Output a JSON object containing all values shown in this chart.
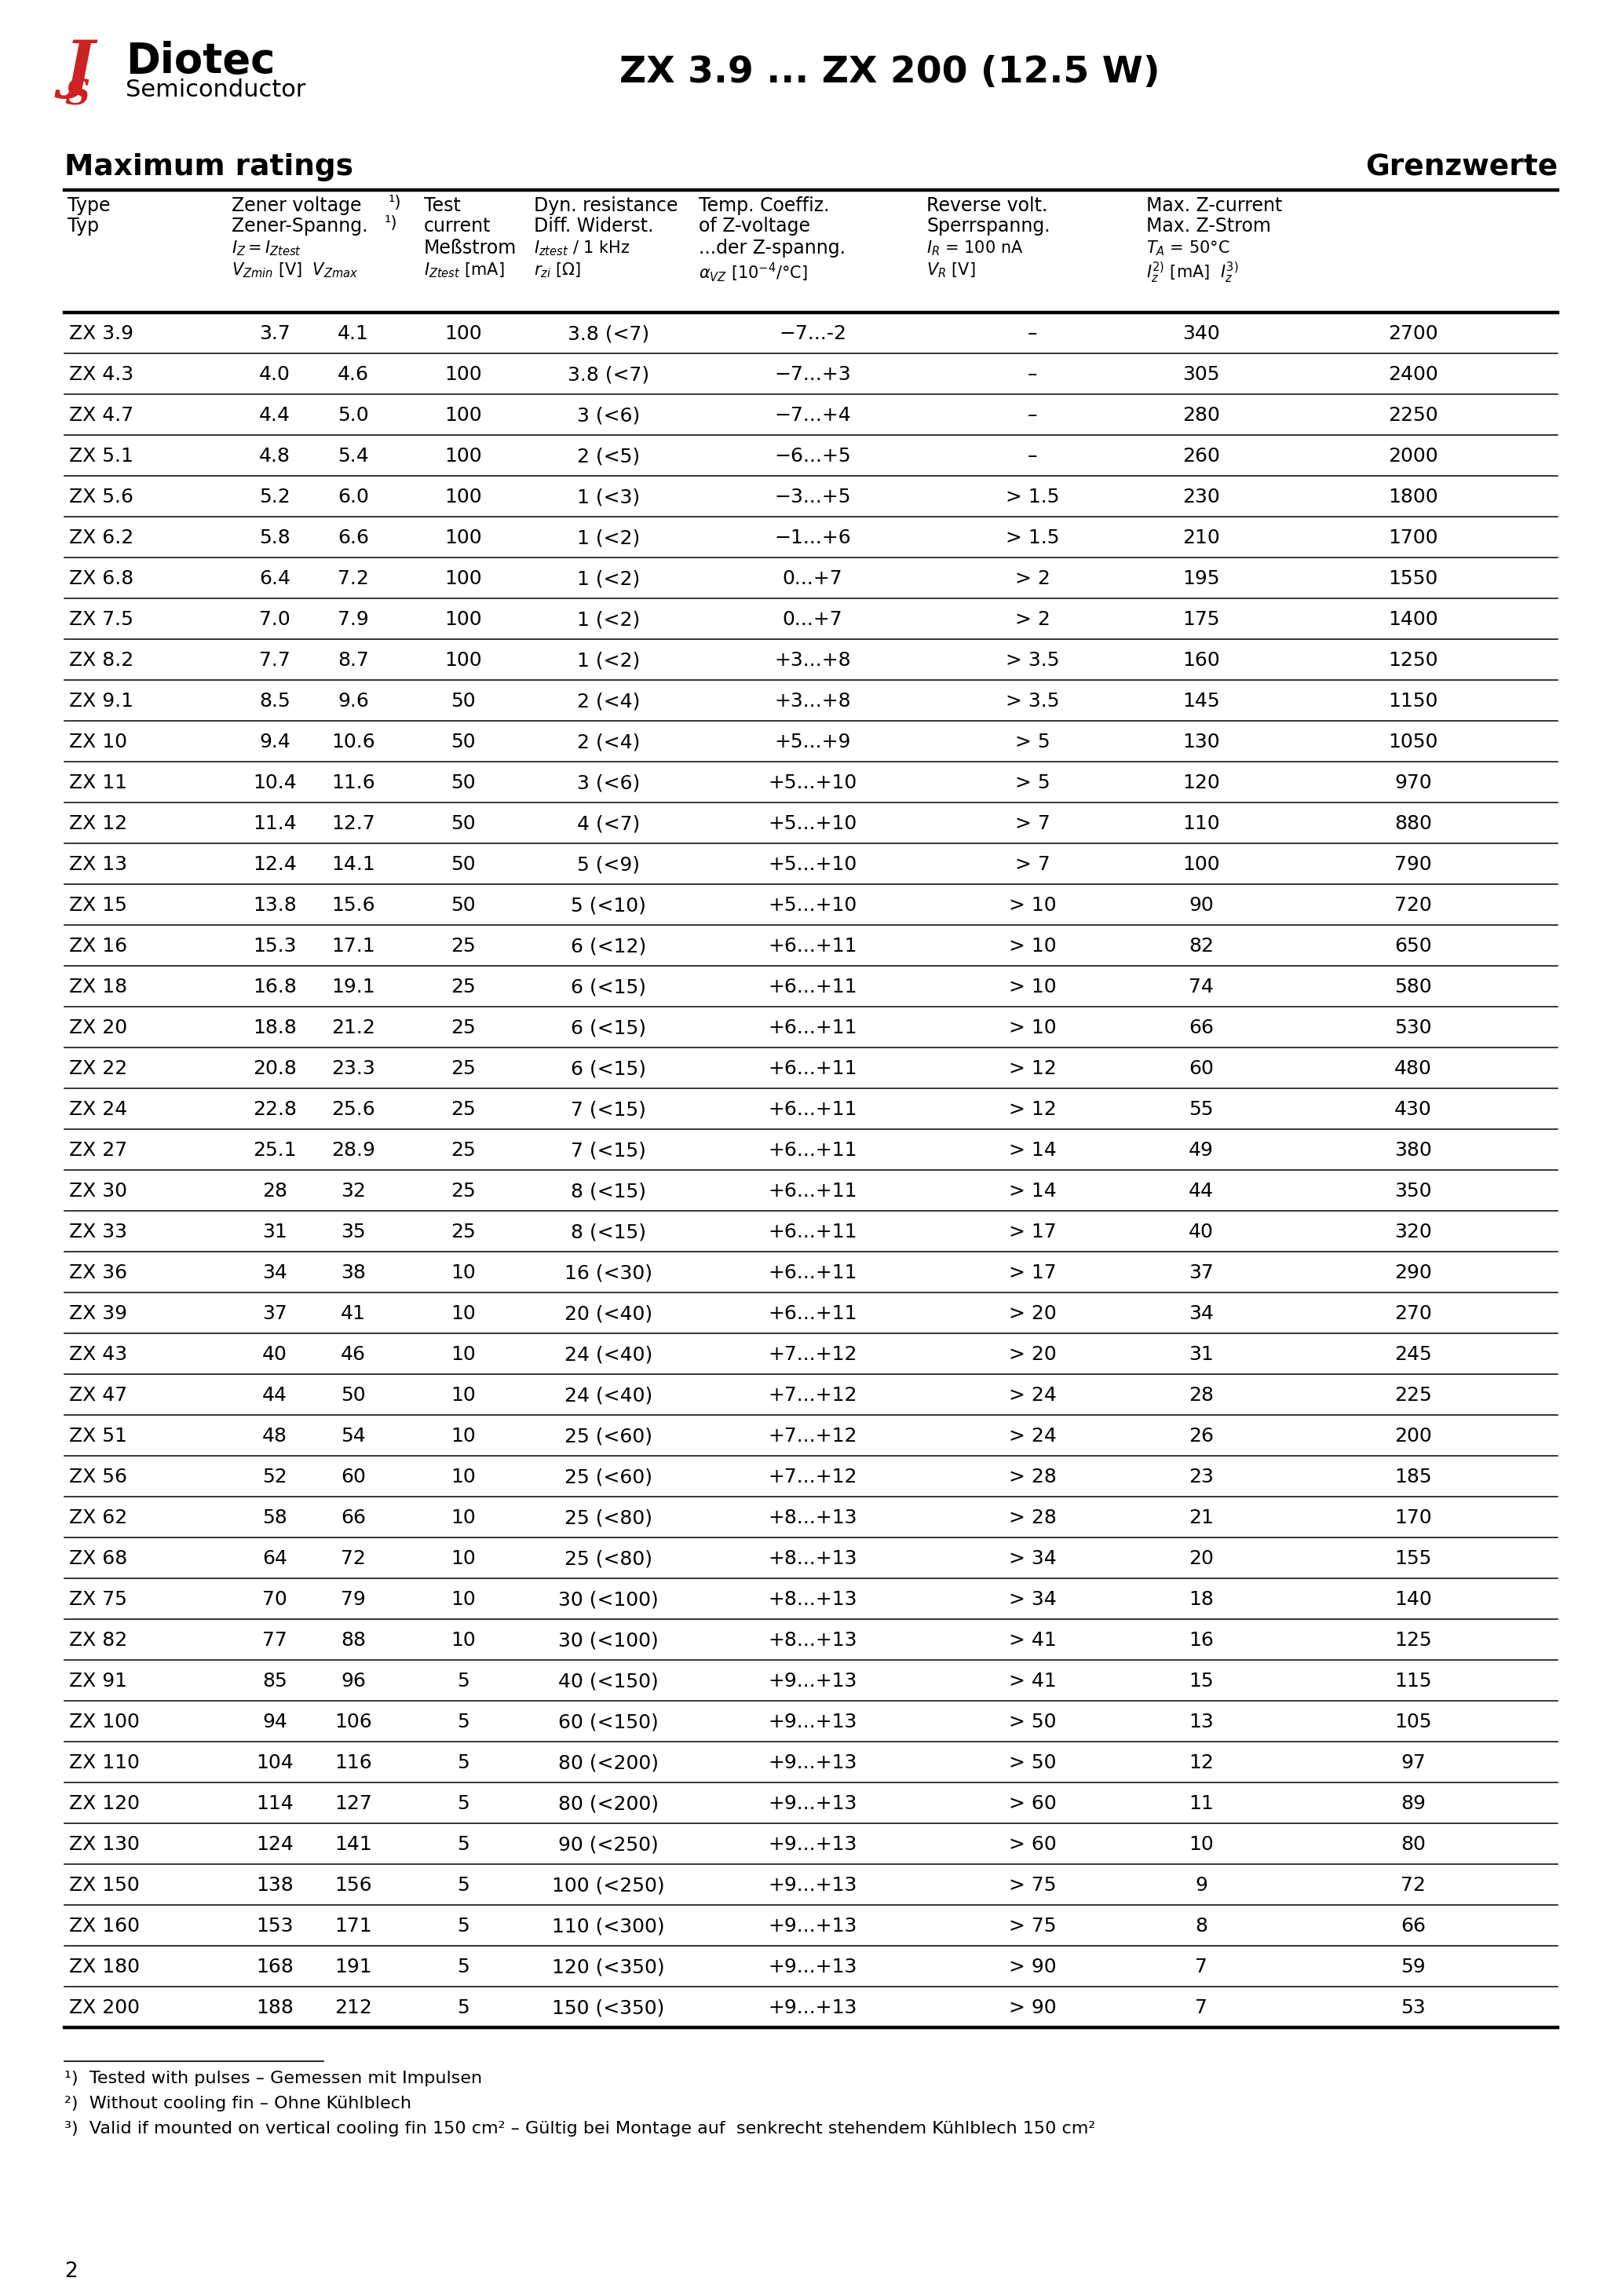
{
  "title": "ZX 3.9 ... ZX 200 (12.5 W)",
  "logo_text_top": "Diotec",
  "logo_text_bottom": "Semiconductor",
  "section_left": "Maximum ratings",
  "section_right": "Grenzwerte",
  "rows": [
    [
      "ZX 3.9",
      "3.7",
      "4.1",
      "100",
      "3.8 (<7)",
      "-7...-2",
      "-",
      "340",
      "2700"
    ],
    [
      "ZX 4.3",
      "4.0",
      "4.6",
      "100",
      "3.8 (<7)",
      "-7...+3",
      "-",
      "305",
      "2400"
    ],
    [
      "ZX 4.7",
      "4.4",
      "5.0",
      "100",
      "3 (<6)",
      "-7...+4",
      "-",
      "280",
      "2250"
    ],
    [
      "ZX 5.1",
      "4.8",
      "5.4",
      "100",
      "2 (<5)",
      "-6...+5",
      "-",
      "260",
      "2000"
    ],
    [
      "ZX 5.6",
      "5.2",
      "6.0",
      "100",
      "1 (<3)",
      "-3...+5",
      "> 1.5",
      "230",
      "1800"
    ],
    [
      "ZX 6.2",
      "5.8",
      "6.6",
      "100",
      "1 (<2)",
      "-1...+6",
      "> 1.5",
      "210",
      "1700"
    ],
    [
      "ZX 6.8",
      "6.4",
      "7.2",
      "100",
      "1 (<2)",
      "0...+7",
      "> 2",
      "195",
      "1550"
    ],
    [
      "ZX 7.5",
      "7.0",
      "7.9",
      "100",
      "1 (<2)",
      "0...+7",
      "> 2",
      "175",
      "1400"
    ],
    [
      "ZX 8.2",
      "7.7",
      "8.7",
      "100",
      "1 (<2)",
      "+3...+8",
      "> 3.5",
      "160",
      "1250"
    ],
    [
      "ZX 9.1",
      "8.5",
      "9.6",
      "50",
      "2 (<4)",
      "+3...+8",
      "> 3.5",
      "145",
      "1150"
    ],
    [
      "ZX 10",
      "9.4",
      "10.6",
      "50",
      "2 (<4)",
      "+5...+9",
      "> 5",
      "130",
      "1050"
    ],
    [
      "ZX 11",
      "10.4",
      "11.6",
      "50",
      "3 (<6)",
      "+5...+10",
      "> 5",
      "120",
      "970"
    ],
    [
      "ZX 12",
      "11.4",
      "12.7",
      "50",
      "4 (<7)",
      "+5...+10",
      "> 7",
      "110",
      "880"
    ],
    [
      "ZX 13",
      "12.4",
      "14.1",
      "50",
      "5 (<9)",
      "+5...+10",
      "> 7",
      "100",
      "790"
    ],
    [
      "ZX 15",
      "13.8",
      "15.6",
      "50",
      "5 (<10)",
      "+5...+10",
      "> 10",
      "90",
      "720"
    ],
    [
      "ZX 16",
      "15.3",
      "17.1",
      "25",
      "6 (<12)",
      "+6...+11",
      "> 10",
      "82",
      "650"
    ],
    [
      "ZX 18",
      "16.8",
      "19.1",
      "25",
      "6 (<15)",
      "+6...+11",
      "> 10",
      "74",
      "580"
    ],
    [
      "ZX 20",
      "18.8",
      "21.2",
      "25",
      "6 (<15)",
      "+6...+11",
      "> 10",
      "66",
      "530"
    ],
    [
      "ZX 22",
      "20.8",
      "23.3",
      "25",
      "6 (<15)",
      "+6...+11",
      "> 12",
      "60",
      "480"
    ],
    [
      "ZX 24",
      "22.8",
      "25.6",
      "25",
      "7 (<15)",
      "+6...+11",
      "> 12",
      "55",
      "430"
    ],
    [
      "ZX 27",
      "25.1",
      "28.9",
      "25",
      "7 (<15)",
      "+6...+11",
      "> 14",
      "49",
      "380"
    ],
    [
      "ZX 30",
      "28",
      "32",
      "25",
      "8 (<15)",
      "+6...+11",
      "> 14",
      "44",
      "350"
    ],
    [
      "ZX 33",
      "31",
      "35",
      "25",
      "8 (<15)",
      "+6...+11",
      "> 17",
      "40",
      "320"
    ],
    [
      "ZX 36",
      "34",
      "38",
      "10",
      "16 (<30)",
      "+6...+11",
      "> 17",
      "37",
      "290"
    ],
    [
      "ZX 39",
      "37",
      "41",
      "10",
      "20 (<40)",
      "+6...+11",
      "> 20",
      "34",
      "270"
    ],
    [
      "ZX 43",
      "40",
      "46",
      "10",
      "24 (<40)",
      "+7...+12",
      "> 20",
      "31",
      "245"
    ],
    [
      "ZX 47",
      "44",
      "50",
      "10",
      "24 (<40)",
      "+7...+12",
      "> 24",
      "28",
      "225"
    ],
    [
      "ZX 51",
      "48",
      "54",
      "10",
      "25 (<60)",
      "+7...+12",
      "> 24",
      "26",
      "200"
    ],
    [
      "ZX 56",
      "52",
      "60",
      "10",
      "25 (<60)",
      "+7...+12",
      "> 28",
      "23",
      "185"
    ],
    [
      "ZX 62",
      "58",
      "66",
      "10",
      "25 (<80)",
      "+8...+13",
      "> 28",
      "21",
      "170"
    ],
    [
      "ZX 68",
      "64",
      "72",
      "10",
      "25 (<80)",
      "+8...+13",
      "> 34",
      "20",
      "155"
    ],
    [
      "ZX 75",
      "70",
      "79",
      "10",
      "30 (<100)",
      "+8...+13",
      "> 34",
      "18",
      "140"
    ],
    [
      "ZX 82",
      "77",
      "88",
      "10",
      "30 (<100)",
      "+8...+13",
      "> 41",
      "16",
      "125"
    ],
    [
      "ZX 91",
      "85",
      "96",
      "5",
      "40 (<150)",
      "+9...+13",
      "> 41",
      "15",
      "115"
    ],
    [
      "ZX 100",
      "94",
      "106",
      "5",
      "60 (<150)",
      "+9...+13",
      "> 50",
      "13",
      "105"
    ],
    [
      "ZX 110",
      "104",
      "116",
      "5",
      "80 (<200)",
      "+9...+13",
      "> 50",
      "12",
      "97"
    ],
    [
      "ZX 120",
      "114",
      "127",
      "5",
      "80 (<200)",
      "+9...+13",
      "> 60",
      "11",
      "89"
    ],
    [
      "ZX 130",
      "124",
      "141",
      "5",
      "90 (<250)",
      "+9...+13",
      "> 60",
      "10",
      "80"
    ],
    [
      "ZX 150",
      "138",
      "156",
      "5",
      "100 (<250)",
      "+9...+13",
      "> 75",
      "9",
      "72"
    ],
    [
      "ZX 160",
      "153",
      "171",
      "5",
      "110 (<300)",
      "+9...+13",
      "> 75",
      "8",
      "66"
    ],
    [
      "ZX 180",
      "168",
      "191",
      "5",
      "120 (<350)",
      "+9...+13",
      "> 90",
      "7",
      "59"
    ],
    [
      "ZX 200",
      "188",
      "212",
      "5",
      "150 (<350)",
      "+9...+13",
      "> 90",
      "7",
      "53"
    ]
  ],
  "page_number": "2",
  "background_color": "#ffffff",
  "text_color": "#000000",
  "logo_color": "#cc2222"
}
